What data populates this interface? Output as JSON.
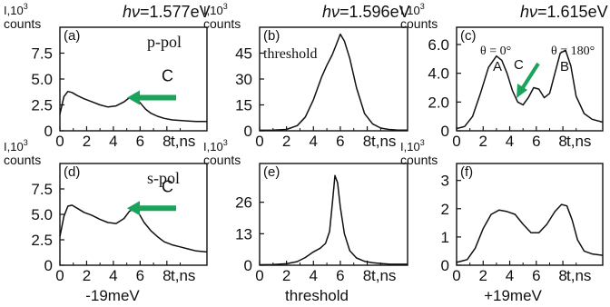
{
  "column_headers": [
    {
      "prefix": "hν",
      "value": "=1.577eV"
    },
    {
      "prefix": "hν",
      "value": "=1.596eV"
    },
    {
      "prefix": "hν",
      "value": "=1.615eV"
    }
  ],
  "footer_labels": [
    "-19meV",
    "threshold",
    "+19meV"
  ],
  "y_unit": {
    "line1": "I,10",
    "sup": "3",
    "line2": "counts"
  },
  "x_unit": "t,ns",
  "colors": {
    "trace": "#111111",
    "arrow": "#1aa35a",
    "axis": "#111111"
  },
  "chart_data": [
    {
      "type": "line",
      "panel": "(a)",
      "polarization_label": "p-pol",
      "xlim": [
        0,
        11
      ],
      "ylim": [
        0,
        10
      ],
      "xticks": [
        0,
        2,
        4,
        6,
        8
      ],
      "yticks": [
        0,
        2.5,
        5.0,
        7.5
      ],
      "ytick_labels": [
        "0",
        "2.5",
        "5.0",
        "7.5"
      ],
      "annotations": [
        {
          "text": "C",
          "arrow": true,
          "at": [
            5.8,
            3.2
          ]
        }
      ],
      "x": [
        0,
        0.3,
        0.6,
        0.9,
        1.3,
        1.8,
        2.4,
        3.0,
        3.6,
        4.2,
        4.8,
        5.3,
        5.7,
        6.0,
        6.4,
        6.8,
        7.3,
        7.8,
        8.4,
        9.0,
        9.6,
        10.2,
        11.0
      ],
      "y": [
        1.6,
        3.3,
        3.8,
        3.7,
        3.4,
        3.1,
        2.8,
        2.5,
        2.3,
        2.4,
        2.8,
        3.3,
        3.2,
        2.7,
        2.1,
        1.7,
        1.4,
        1.2,
        1.05,
        1.0,
        0.95,
        0.9,
        0.9
      ]
    },
    {
      "type": "line",
      "panel": "(b)",
      "annotation_text": "threshold",
      "xlim": [
        0,
        11
      ],
      "ylim": [
        0,
        60
      ],
      "xticks": [
        0,
        2,
        4,
        6,
        8
      ],
      "yticks": [
        0,
        15,
        30,
        45
      ],
      "ytick_labels": [
        "0",
        "15",
        "30",
        "45"
      ],
      "x": [
        0,
        1.0,
        2.0,
        2.8,
        3.4,
        4.0,
        4.6,
        5.0,
        5.4,
        5.7,
        6.0,
        6.3,
        6.7,
        7.2,
        7.8,
        8.4,
        9.0,
        9.6,
        10.2,
        11.0
      ],
      "y": [
        0.3,
        0.4,
        0.8,
        3,
        8,
        18,
        31,
        38,
        44,
        50,
        56,
        52,
        42,
        25,
        10,
        4,
        1.6,
        0.8,
        0.5,
        0.4
      ]
    },
    {
      "type": "line",
      "panel": "(c)",
      "xlim": [
        0,
        11
      ],
      "ylim": [
        0,
        7.2
      ],
      "xticks": [
        0,
        2,
        4,
        6,
        8
      ],
      "yticks": [
        0,
        2.0,
        4.0,
        6.0
      ],
      "ytick_labels": [
        "0",
        "2.0",
        "4.0",
        "6.0"
      ],
      "annotations": [
        {
          "text": "θ = 0°"
        },
        {
          "text": "θ = 180°"
        },
        {
          "text": "A"
        },
        {
          "text": "B"
        },
        {
          "text": "C",
          "arrow": true
        }
      ],
      "x": [
        0,
        0.6,
        1.2,
        1.8,
        2.4,
        3.0,
        3.4,
        3.8,
        4.2,
        4.6,
        5.0,
        5.4,
        5.8,
        6.2,
        6.6,
        7.0,
        7.4,
        7.8,
        8.2,
        8.6,
        9.0,
        9.6,
        10.2,
        11.0
      ],
      "y": [
        0.15,
        0.3,
        1.0,
        2.6,
        4.4,
        5.2,
        4.9,
        4.0,
        2.8,
        2.0,
        1.8,
        2.3,
        3.0,
        2.9,
        2.3,
        2.6,
        4.0,
        5.4,
        5.6,
        4.5,
        2.4,
        1.2,
        0.8,
        0.6
      ]
    },
    {
      "type": "line",
      "panel": "(d)",
      "polarization_label": "s-pol",
      "xlim": [
        0,
        11
      ],
      "ylim": [
        0,
        10
      ],
      "xticks": [
        0,
        2,
        4,
        6,
        8
      ],
      "yticks": [
        0,
        2.5,
        5.0,
        7.5
      ],
      "ytick_labels": [
        "0",
        "2.5",
        "5.0",
        "7.5"
      ],
      "annotations": [
        {
          "text": "C",
          "arrow": true
        }
      ],
      "x": [
        0,
        0.3,
        0.6,
        0.9,
        1.3,
        1.8,
        2.4,
        3.0,
        3.6,
        4.2,
        4.8,
        5.2,
        5.6,
        5.9,
        6.3,
        6.8,
        7.3,
        7.8,
        8.4,
        9.0,
        9.6,
        10.2,
        11.0
      ],
      "y": [
        2.8,
        4.8,
        5.8,
        5.9,
        5.6,
        5.2,
        4.9,
        4.5,
        4.2,
        4.1,
        4.6,
        5.3,
        5.6,
        5.1,
        4.2,
        3.4,
        2.8,
        2.3,
        2.0,
        1.8,
        1.6,
        1.4,
        1.3
      ]
    },
    {
      "type": "line",
      "panel": "(e)",
      "xlim": [
        0,
        11
      ],
      "ylim": [
        0,
        42
      ],
      "xticks": [
        0,
        2,
        4,
        6,
        8
      ],
      "yticks": [
        0,
        13,
        26
      ],
      "ytick_labels": [
        "0",
        "13",
        "26"
      ],
      "x": [
        0,
        1.0,
        2.0,
        2.8,
        3.4,
        4.0,
        4.5,
        4.9,
        5.2,
        5.4,
        5.6,
        5.8,
        6.0,
        6.3,
        6.7,
        7.2,
        7.8,
        8.4,
        9.0,
        9.6,
        10.4,
        11.0
      ],
      "y": [
        0.2,
        0.3,
        0.6,
        1.5,
        3.2,
        5.5,
        7,
        9,
        14,
        25,
        37,
        34,
        24,
        13,
        6,
        3,
        1.6,
        1.0,
        0.7,
        0.5,
        0.4,
        0.4
      ]
    },
    {
      "type": "line",
      "panel": "(f)",
      "xlim": [
        0,
        11
      ],
      "ylim": [
        0,
        3.6
      ],
      "xticks": [
        0,
        2,
        4,
        6,
        8
      ],
      "yticks": [
        0,
        1,
        2,
        3
      ],
      "ytick_labels": [
        "0",
        "1",
        "2",
        "3"
      ],
      "x": [
        0,
        0.8,
        1.4,
        2.0,
        2.6,
        3.2,
        3.8,
        4.4,
        5.0,
        5.6,
        6.2,
        6.8,
        7.4,
        7.9,
        8.3,
        8.7,
        9.1,
        9.6,
        10.2,
        11.0
      ],
      "y": [
        0.1,
        0.2,
        0.6,
        1.3,
        1.8,
        1.95,
        1.9,
        1.8,
        1.45,
        1.15,
        1.15,
        1.45,
        1.9,
        2.15,
        2.1,
        1.6,
        0.9,
        0.5,
        0.4,
        0.35
      ]
    }
  ]
}
